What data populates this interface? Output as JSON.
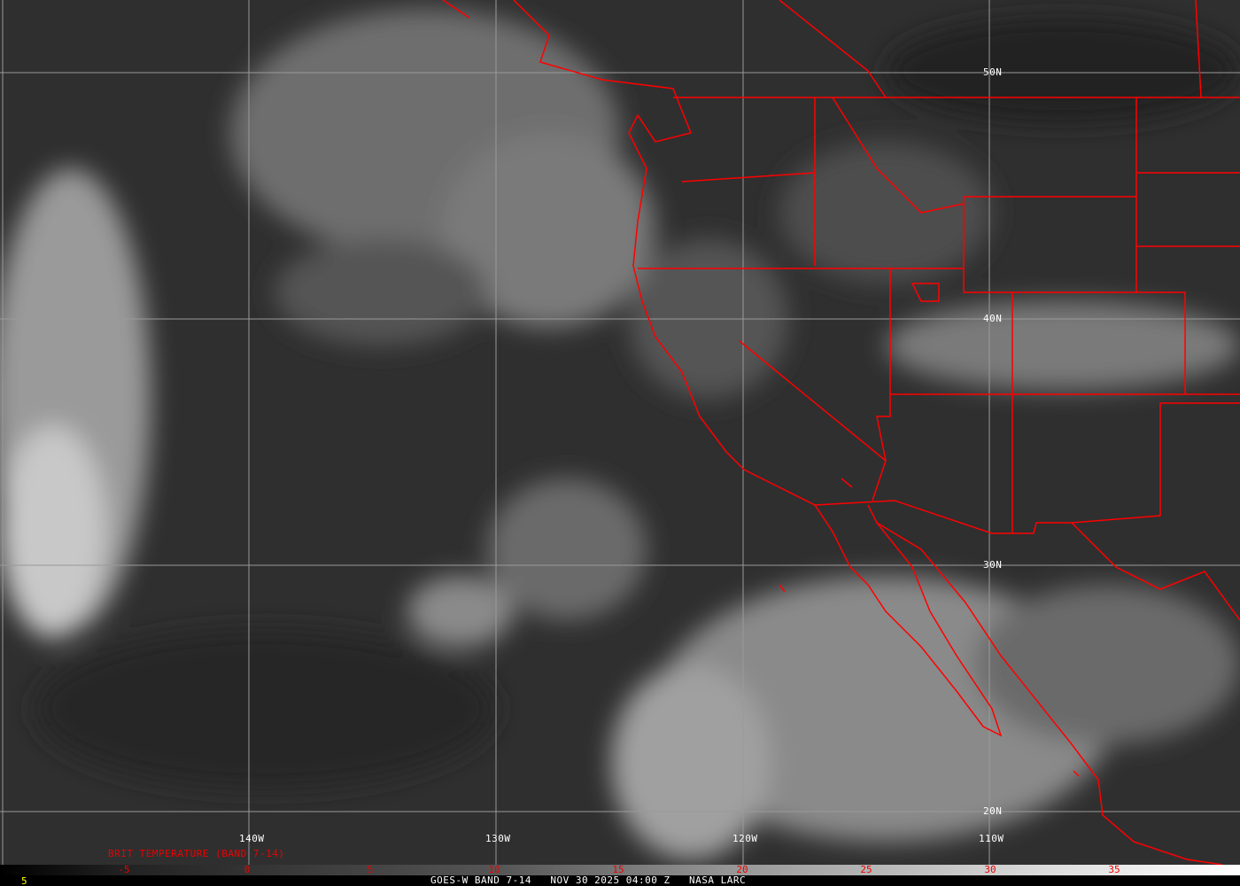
{
  "map": {
    "latitude_labels": [
      "50N",
      "40N",
      "30N",
      "20N"
    ],
    "longitude_labels": [
      "140W",
      "130W",
      "120W",
      "110W"
    ],
    "border_color": "#ff0000",
    "grid_color": "#9a9a9a"
  },
  "legend": {
    "title": "BRIT TEMPERATURE (BAND 7-14)",
    "ticks": [
      "-5",
      "0",
      "5",
      "10",
      "15",
      "20",
      "25",
      "30",
      "35"
    ],
    "tick_color": "#ff0000"
  },
  "footer": {
    "left_value": "5",
    "caption": "GOES-W BAND 7-14   NOV 30 2025 04:00 Z   NASA LARC"
  }
}
